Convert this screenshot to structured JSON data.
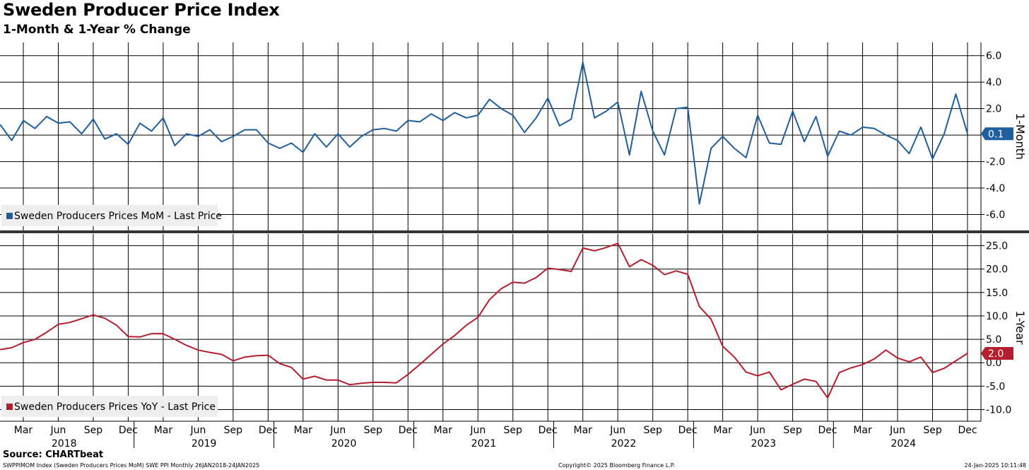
{
  "header": {
    "title": "Sweden Producer Price Index",
    "subtitle": "1-Month & 1-Year % Change"
  },
  "footer": {
    "source": "Source: CHARTbeat",
    "left": "SWPPIMOM Index (Sweden Producers Prices MoM) SWE PPI  Monthly 26JAN2018-24JAN2025",
    "center": "Copyright© 2025 Bloomberg Finance L.P.",
    "right": "24-Jan-2025 10:11:48"
  },
  "colors": {
    "mom": "#1f5fa0",
    "yoy": "#b41e2e",
    "grid": "#000000"
  },
  "chart_data": [
    {
      "type": "line",
      "axis_title": "1-Month",
      "ylim": [
        -7.2,
        7
      ],
      "yticks": [
        6.0,
        4.0,
        2.0,
        -2.0,
        -4.0,
        -6.0
      ],
      "ytick_labels": [
        "6.0",
        "4.0",
        "2.0",
        "-2.0",
        "-4.0",
        "-6.0"
      ],
      "legend": "Sweden Producers Prices MoM - Last Price",
      "legend_position": "bottom-left",
      "last_value_label": "0.1",
      "grid": true,
      "series": [
        {
          "name": "Sweden Producers Prices MoM - Last Price",
          "x": [
            "2018-01",
            "2018-02",
            "2018-03",
            "2018-04",
            "2018-05",
            "2018-06",
            "2018-07",
            "2018-08",
            "2018-09",
            "2018-10",
            "2018-11",
            "2018-12",
            "2019-01",
            "2019-02",
            "2019-03",
            "2019-04",
            "2019-05",
            "2019-06",
            "2019-07",
            "2019-08",
            "2019-09",
            "2019-10",
            "2019-11",
            "2019-12",
            "2020-01",
            "2020-02",
            "2020-03",
            "2020-04",
            "2020-05",
            "2020-06",
            "2020-07",
            "2020-08",
            "2020-09",
            "2020-10",
            "2020-11",
            "2020-12",
            "2021-01",
            "2021-02",
            "2021-03",
            "2021-04",
            "2021-05",
            "2021-06",
            "2021-07",
            "2021-08",
            "2021-09",
            "2021-10",
            "2021-11",
            "2021-12",
            "2022-01",
            "2022-02",
            "2022-03",
            "2022-04",
            "2022-05",
            "2022-06",
            "2022-07",
            "2022-08",
            "2022-09",
            "2022-10",
            "2022-11",
            "2022-12",
            "2023-01",
            "2023-02",
            "2023-03",
            "2023-04",
            "2023-05",
            "2023-06",
            "2023-07",
            "2023-08",
            "2023-09",
            "2023-10",
            "2023-11",
            "2023-12",
            "2024-01",
            "2024-02",
            "2024-03",
            "2024-04",
            "2024-05",
            "2024-06",
            "2024-07",
            "2024-08",
            "2024-09",
            "2024-10",
            "2024-11",
            "2024-12"
          ],
          "values": [
            0.8,
            -0.4,
            1.1,
            0.5,
            1.4,
            0.9,
            1.0,
            0.1,
            1.2,
            -0.3,
            0.1,
            -0.7,
            0.9,
            0.3,
            1.3,
            -0.8,
            0.1,
            -0.1,
            0.4,
            -0.5,
            -0.1,
            0.4,
            0.4,
            -0.6,
            -1.0,
            -0.6,
            -1.3,
            0.1,
            -0.9,
            0.1,
            -0.9,
            -0.1,
            0.4,
            0.5,
            0.3,
            1.1,
            1.0,
            1.6,
            1.1,
            1.7,
            1.3,
            1.5,
            2.7,
            2.0,
            1.5,
            0.2,
            1.3,
            2.8,
            0.7,
            1.2,
            5.5,
            1.3,
            1.8,
            2.5,
            -1.5,
            3.3,
            0.3,
            -1.5,
            2.0,
            2.1,
            -5.2,
            -1.0,
            -0.1,
            -1.0,
            -1.7,
            1.5,
            -0.6,
            -0.7,
            1.8,
            -0.5,
            1.4,
            -1.6,
            0.3,
            0.0,
            0.6,
            0.5,
            0.0,
            -0.4,
            -1.4,
            0.6,
            -1.8,
            0.1,
            3.1,
            0.1
          ]
        }
      ]
    },
    {
      "type": "line",
      "axis_title": "1-Year",
      "ylim": [
        -12.5,
        27.5
      ],
      "yticks": [
        25.0,
        20.0,
        15.0,
        10.0,
        5.0,
        0.0,
        -5.0,
        -10.0
      ],
      "ytick_labels": [
        "25.0",
        "20.0",
        "15.0",
        "10.0",
        "5.0",
        "0.0",
        "-5.0",
        "-10.0"
      ],
      "legend": "Sweden Producers Prices YoY - Last Price",
      "legend_position": "bottom-left",
      "last_value_label": "2.0",
      "grid": true,
      "series": [
        {
          "name": "Sweden Producers Prices YoY - Last Price",
          "x": [
            "2018-01",
            "2018-02",
            "2018-03",
            "2018-04",
            "2018-05",
            "2018-06",
            "2018-07",
            "2018-08",
            "2018-09",
            "2018-10",
            "2018-11",
            "2018-12",
            "2019-01",
            "2019-02",
            "2019-03",
            "2019-04",
            "2019-05",
            "2019-06",
            "2019-07",
            "2019-08",
            "2019-09",
            "2019-10",
            "2019-11",
            "2019-12",
            "2020-01",
            "2020-02",
            "2020-03",
            "2020-04",
            "2020-05",
            "2020-06",
            "2020-07",
            "2020-08",
            "2020-09",
            "2020-10",
            "2020-11",
            "2020-12",
            "2021-01",
            "2021-02",
            "2021-03",
            "2021-04",
            "2021-05",
            "2021-06",
            "2021-07",
            "2021-08",
            "2021-09",
            "2021-10",
            "2021-11",
            "2021-12",
            "2022-01",
            "2022-02",
            "2022-03",
            "2022-04",
            "2022-05",
            "2022-06",
            "2022-07",
            "2022-08",
            "2022-09",
            "2022-10",
            "2022-11",
            "2022-12",
            "2023-01",
            "2023-02",
            "2023-03",
            "2023-04",
            "2023-05",
            "2023-06",
            "2023-07",
            "2023-08",
            "2023-09",
            "2023-10",
            "2023-11",
            "2023-12",
            "2024-01",
            "2024-02",
            "2024-03",
            "2024-04",
            "2024-05",
            "2024-06",
            "2024-07",
            "2024-08",
            "2024-09",
            "2024-10",
            "2024-11",
            "2024-12"
          ],
          "values": [
            2.8,
            3.2,
            4.3,
            5.0,
            6.5,
            8.2,
            8.6,
            9.4,
            10.2,
            9.5,
            8.0,
            5.6,
            5.5,
            6.2,
            6.2,
            5.0,
            3.7,
            2.7,
            2.2,
            1.8,
            0.4,
            1.2,
            1.5,
            1.6,
            -0.2,
            -1.0,
            -3.5,
            -2.9,
            -3.7,
            -3.7,
            -4.7,
            -4.4,
            -4.2,
            -4.2,
            -4.3,
            -2.5,
            -0.4,
            1.8,
            4.0,
            5.8,
            8.0,
            9.7,
            13.5,
            15.8,
            17.2,
            17.0,
            18.2,
            20.2,
            19.9,
            19.5,
            24.5,
            23.9,
            24.6,
            25.5,
            20.5,
            22.0,
            20.8,
            18.8,
            19.6,
            18.9,
            12.0,
            9.3,
            3.5,
            1.2,
            -2.0,
            -2.8,
            -2.0,
            -5.8,
            -4.6,
            -3.5,
            -4.0,
            -7.5,
            -2.1,
            -1.1,
            -0.4,
            0.8,
            2.7,
            1.0,
            0.2,
            1.2,
            -2.1,
            -1.2,
            0.4,
            2.0
          ]
        }
      ]
    },
    {
      "type": "axis",
      "month_labels": [
        "Mar",
        "Jun",
        "Sep",
        "Dec",
        "Mar",
        "Jun",
        "Sep",
        "Dec",
        "Mar",
        "Jun",
        "Sep",
        "Dec",
        "Mar",
        "Jun",
        "Sep",
        "Dec",
        "Mar",
        "Jun",
        "Sep",
        "Dec",
        "Mar",
        "Jun",
        "Sep",
        "Dec",
        "Mar",
        "Jun",
        "Sep",
        "Dec"
      ],
      "month_positions": [
        "2018-03",
        "2018-06",
        "2018-09",
        "2018-12",
        "2019-03",
        "2019-06",
        "2019-09",
        "2019-12",
        "2020-03",
        "2020-06",
        "2020-09",
        "2020-12",
        "2021-03",
        "2021-06",
        "2021-09",
        "2021-12",
        "2022-03",
        "2022-06",
        "2022-09",
        "2022-12",
        "2023-03",
        "2023-06",
        "2023-09",
        "2023-12",
        "2024-03",
        "2024-06",
        "2024-09",
        "2024-12"
      ],
      "year_labels": [
        "2018",
        "2019",
        "2020",
        "2021",
        "2022",
        "2023",
        "2024"
      ]
    }
  ]
}
